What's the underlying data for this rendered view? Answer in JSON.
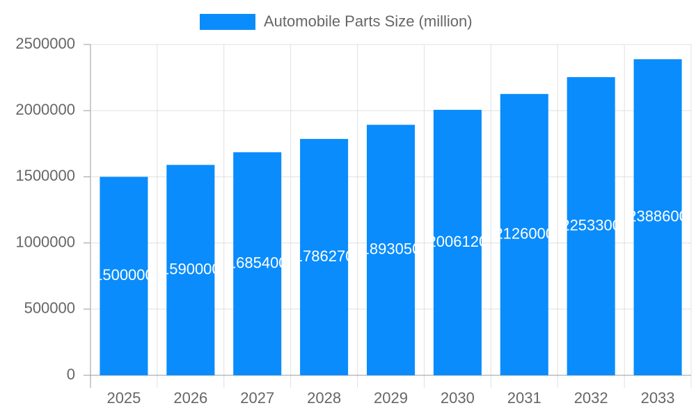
{
  "chart_data": {
    "type": "bar",
    "legend": "Automobile Parts Size (million)",
    "categories": [
      "2025",
      "2026",
      "2027",
      "2028",
      "2029",
      "2030",
      "2031",
      "2032",
      "2033"
    ],
    "values": [
      1500000,
      1590000,
      1685400,
      1786270,
      1893050,
      2006120,
      2126000,
      2253300,
      2388600
    ],
    "color": "#0a8cfc",
    "ylim": [
      0,
      2500000
    ],
    "yticks": [
      0,
      500000,
      1000000,
      1500000,
      2000000,
      2500000
    ],
    "grid": true
  }
}
